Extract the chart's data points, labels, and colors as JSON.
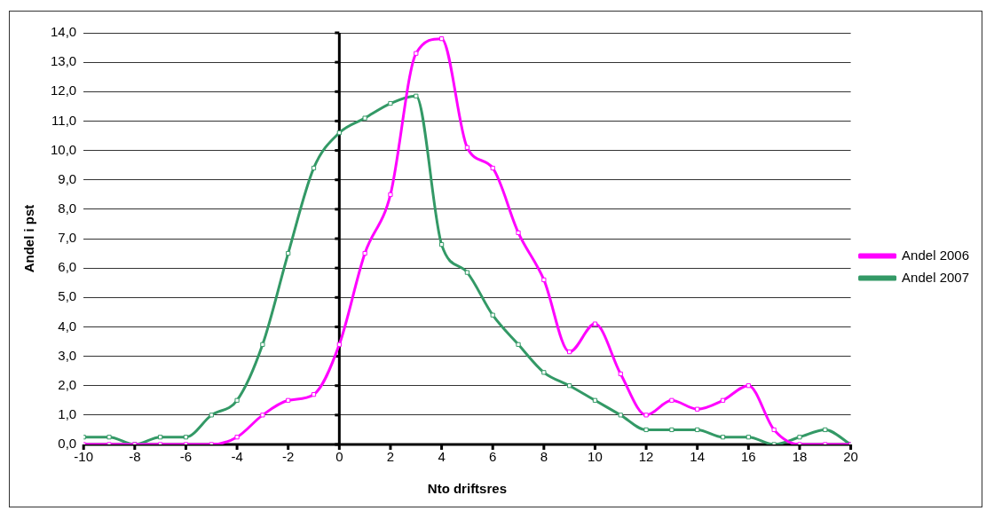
{
  "chart_data": {
    "type": "line",
    "xlabel": "Nto driftsres",
    "ylabel": "Andel i pst",
    "x": [
      -10,
      -9,
      -8,
      -7,
      -6,
      -5,
      -4,
      -3,
      -2,
      -1,
      0,
      1,
      2,
      3,
      4,
      5,
      6,
      7,
      8,
      9,
      10,
      11,
      12,
      13,
      14,
      15,
      16,
      17,
      18,
      19,
      20
    ],
    "series": [
      {
        "name": "Andel 2006",
        "color": "#ff00ff",
        "values": [
          0,
          0,
          0,
          0,
          0,
          0,
          0.25,
          1.0,
          1.5,
          1.7,
          3.4,
          6.5,
          8.5,
          13.3,
          13.8,
          10.1,
          9.4,
          7.2,
          5.6,
          3.15,
          4.1,
          2.4,
          1.0,
          1.5,
          1.2,
          1.5,
          2.0,
          0.5,
          0,
          0,
          0
        ]
      },
      {
        "name": "Andel 2007",
        "color": "#339966",
        "values": [
          0.25,
          0.25,
          0,
          0.25,
          0.25,
          1.0,
          1.5,
          3.4,
          6.5,
          9.4,
          10.6,
          11.1,
          11.6,
          11.85,
          6.8,
          5.85,
          4.4,
          3.4,
          2.45,
          2.0,
          1.5,
          1.0,
          0.5,
          0.5,
          0.5,
          0.25,
          0.25,
          0,
          0.25,
          0.5,
          0
        ]
      }
    ],
    "xlim": [
      -10,
      20
    ],
    "xticks": [
      -10,
      -8,
      -6,
      -4,
      -2,
      0,
      2,
      4,
      6,
      8,
      10,
      12,
      14,
      16,
      18,
      20
    ],
    "ylim": [
      0,
      14
    ],
    "yticks": [
      {
        "value": 0,
        "label": "0,0"
      },
      {
        "value": 1,
        "label": "1,0"
      },
      {
        "value": 2,
        "label": "2,0"
      },
      {
        "value": 3,
        "label": "3,0"
      },
      {
        "value": 4,
        "label": "4,0"
      },
      {
        "value": 5,
        "label": "5,0"
      },
      {
        "value": 6,
        "label": "6,0"
      },
      {
        "value": 7,
        "label": "7,0"
      },
      {
        "value": 8,
        "label": "8,0"
      },
      {
        "value": 9,
        "label": "9,0"
      },
      {
        "value": 10,
        "label": "10,0"
      },
      {
        "value": 11,
        "label": "11,0"
      },
      {
        "value": 12,
        "label": "12,0"
      },
      {
        "value": 13,
        "label": "13,0"
      },
      {
        "value": 14,
        "label": "14,0"
      }
    ],
    "grid": "y",
    "legend": "right",
    "marker": "square",
    "line_style": "solid"
  }
}
